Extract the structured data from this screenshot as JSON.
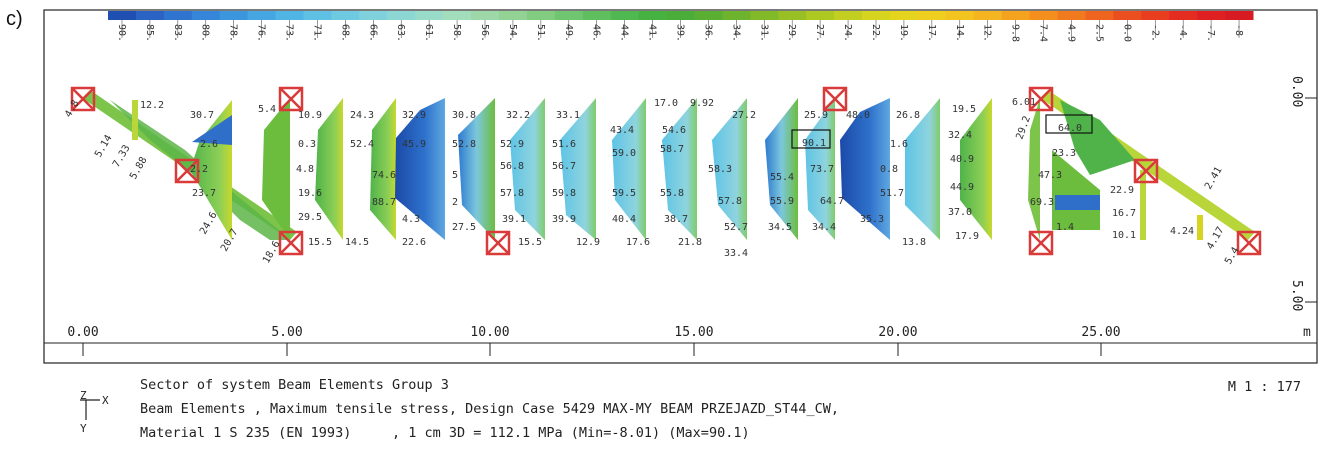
{
  "panel_label": "c)",
  "legend": {
    "values": [
      "90.",
      "85.",
      "83.",
      "80.",
      "78.",
      "76.",
      "73.",
      "71.",
      "68.",
      "66.",
      "63.",
      "61.",
      "58.",
      "56.",
      "54.",
      "51.",
      "49.",
      "46.",
      "44.",
      "41.",
      "39.",
      "36.",
      "34.",
      "31.",
      "29.",
      "27.",
      "24.",
      "22.",
      "19.",
      "17.",
      "14.",
      "12.",
      "9.8",
      "7.4",
      "4.9",
      "2.5",
      "0.0",
      "-2.",
      "-4.",
      "-7.",
      "-8"
    ],
    "colors": [
      "#1f4fb0",
      "#2a63c4",
      "#2f74cf",
      "#3586d8",
      "#3c96de",
      "#45a6e2",
      "#50b4e4",
      "#5ec0e3",
      "#6ecae0",
      "#7fd2dc",
      "#8cd7d3",
      "#98dbc8",
      "#a2debb",
      "#9ed8a8",
      "#92d295",
      "#82cc82",
      "#70c670",
      "#5fbf5f",
      "#50b850",
      "#46b242",
      "#4aad3a",
      "#5aaf33",
      "#6db32d",
      "#82b928",
      "#98c024",
      "#aec822",
      "#c3cf20",
      "#d6d41f",
      "#e4d41e",
      "#eece1e",
      "#f3c41f",
      "#f5b520",
      "#f5a31f",
      "#f48f1e",
      "#f27a1e",
      "#ef641e",
      "#ec4f1f",
      "#e93d20",
      "#e52c21",
      "#e01f22",
      "#d81b22"
    ]
  },
  "axes": {
    "x_ticks": [
      "0.00",
      "5.00",
      "10.00",
      "15.00",
      "20.00",
      "25.00"
    ],
    "x_unit": "m",
    "y_ticks": [
      "0.00",
      "5.00"
    ]
  },
  "diagram": {
    "members": [
      {
        "values": [
          "4.8",
          "5.14",
          "7.33",
          "5.88"
        ]
      },
      {
        "values": [
          "12.2"
        ]
      },
      {
        "values": [
          "30.7",
          "2.6",
          "2.2",
          "23.7",
          "24.6",
          "20.7"
        ]
      },
      {
        "values": [
          "5.4",
          "10.9",
          "0.3",
          "4.8",
          "19.6",
          "29.5",
          "15.5",
          "18.6"
        ]
      },
      {
        "values": [
          "24.3",
          "52.4",
          "14.5"
        ]
      },
      {
        "values": [
          "32.9",
          "45.9",
          "74.6",
          "88.7",
          "4.3",
          "22.6"
        ]
      },
      {
        "values": [
          "30.8",
          "52.8",
          "5",
          "2",
          "27.5"
        ]
      },
      {
        "values": [
          "32.2",
          "52.9",
          "56.8",
          "57.8",
          "39.1",
          "15.5"
        ]
      },
      {
        "values": [
          "33.1",
          "51.6",
          "56.7",
          "59.8",
          "39.9",
          "12.9"
        ]
      },
      {
        "values": [
          "43.4",
          "59.0",
          "59.5",
          "40.4",
          "17.6",
          "17.0"
        ]
      },
      {
        "values": [
          "9.92",
          "54.6",
          "58.7",
          "55.8",
          "38.7",
          "21.8"
        ]
      },
      {
        "values": [
          "27.2",
          "58.3",
          "57.8",
          "52.7",
          "33.4"
        ]
      },
      {
        "values": [
          "55.4",
          "55.9",
          "34.5"
        ]
      },
      {
        "values": [
          "25.9",
          "90.1",
          "73.7",
          "64.7",
          "34.4"
        ]
      },
      {
        "values": [
          "48.0",
          "26.8",
          "1.6",
          "0.8",
          "51.7",
          "35.3",
          "13.8"
        ]
      },
      {
        "values": [
          "19.5",
          "32.4",
          "40.9",
          "44.9",
          "37.0",
          "17.9"
        ]
      },
      {
        "values": [
          "6.01",
          "29.2",
          "23.3",
          "47.3",
          "69.3",
          "1.4",
          "64.0"
        ]
      },
      {
        "values": [
          "22.9",
          "16.7",
          "10.1",
          "4.24",
          "4.17",
          "2.41",
          "5.4"
        ]
      }
    ]
  },
  "footer": {
    "line1": "Sector of system Beam Elements Group 3",
    "line2": "Beam Elements , Maximum tensile stress, Design Case 5429 MAX-MY BEAM PRZEJAZD_ST44_CW,",
    "line3": "Material 1 S 235 (EN 1993)     , 1 cm 3D = 112.1 MPa (Min=-8.01) (Max=90.1)",
    "scale": "M 1 : 177",
    "axis_z": "Z",
    "axis_x": "X",
    "axis_y": "Y"
  }
}
